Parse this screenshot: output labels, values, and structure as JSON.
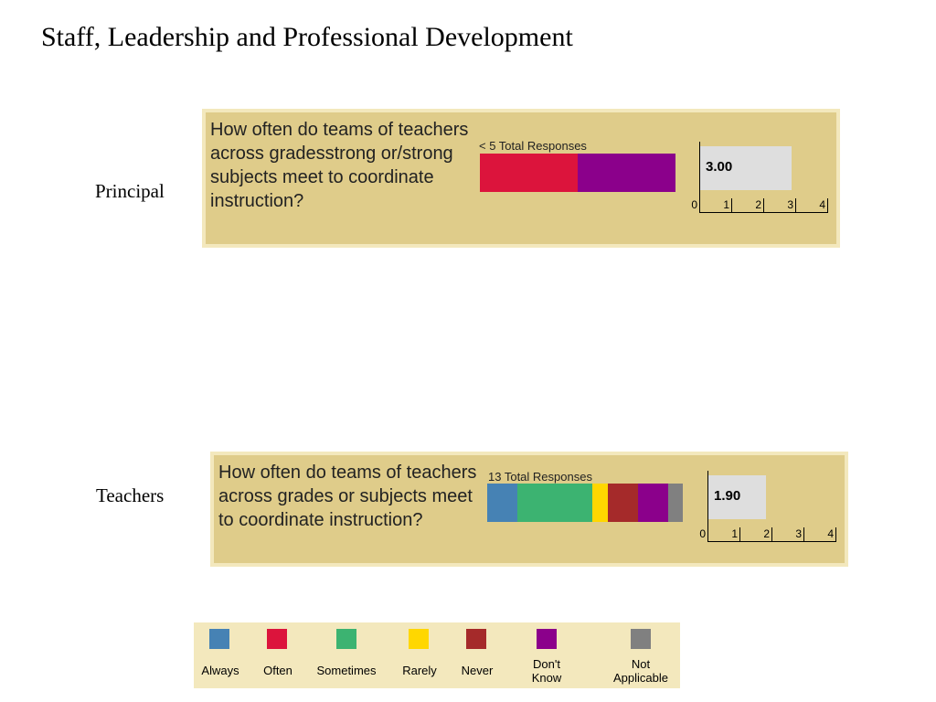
{
  "title": "Staff, Leadership and Professional Development",
  "legend": [
    {
      "key": "always",
      "label": "Always",
      "color": "#4682b4"
    },
    {
      "key": "often",
      "label": "Often",
      "color": "#dc143c"
    },
    {
      "key": "sometimes",
      "label": "Sometimes",
      "color": "#3cb371"
    },
    {
      "key": "rarely",
      "label": "Rarely",
      "color": "#ffd700"
    },
    {
      "key": "never",
      "label": "Never",
      "color": "#a52a2a"
    },
    {
      "key": "dont_know",
      "label": "Don't\nKnow",
      "color": "#8b008b"
    },
    {
      "key": "not_applicable",
      "label": "Not\nApplicable",
      "color": "#808080"
    }
  ],
  "chart_data": [
    {
      "type": "bar",
      "group_label": "Principal",
      "question": "How often do teams of teachers across gradesstrong or/strong subjects meet to coordinate instruction?",
      "responses_text": "< 5 Total Responses",
      "stacked_shares": [
        {
          "category": "Often",
          "share": 0.5
        },
        {
          "category": "Don't Know",
          "share": 0.5
        }
      ],
      "mean_score": 3.0,
      "mean_label": "3.00",
      "x_ticks": [
        "0",
        "1",
        "2",
        "3",
        "4"
      ],
      "xlim": [
        0,
        4
      ]
    },
    {
      "type": "bar",
      "group_label": "Teachers",
      "question": "How often do teams of teachers across grades or subjects meet to coordinate instruction?",
      "responses_text": "13 Total Responses",
      "stacked_shares": [
        {
          "category": "Always",
          "share": 0.154
        },
        {
          "category": "Sometimes",
          "share": 0.385
        },
        {
          "category": "Rarely",
          "share": 0.077
        },
        {
          "category": "Never",
          "share": 0.154
        },
        {
          "category": "Don't Know",
          "share": 0.154
        },
        {
          "category": "Not Applicable",
          "share": 0.077
        }
      ],
      "mean_score": 1.9,
      "mean_label": "1.90",
      "x_ticks": [
        "0",
        "1",
        "2",
        "3",
        "4"
      ],
      "xlim": [
        0,
        4
      ]
    }
  ]
}
